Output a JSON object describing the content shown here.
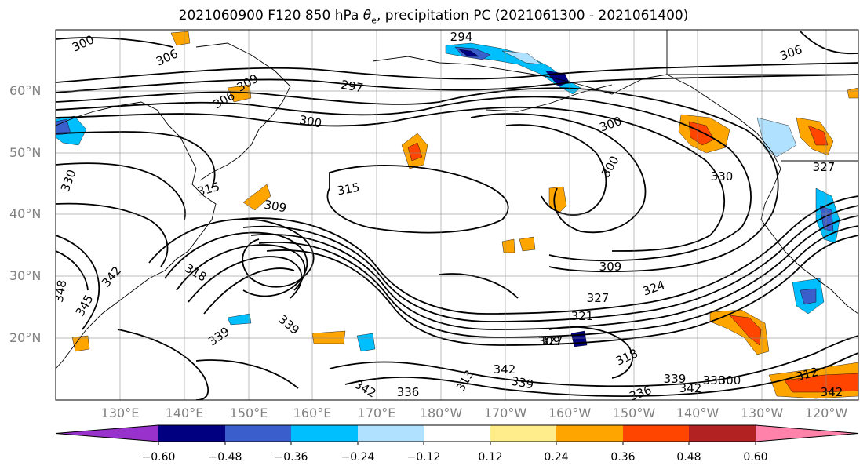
{
  "title": {
    "prefix": "2021060900 F120 850 hPa ",
    "symbol": "θ",
    "symbol_sub": "e",
    "suffix": ", precipitation PC (2021061300 - 2021061400)"
  },
  "map": {
    "projection": "PlateCarree",
    "lon_range": [
      120,
      245
    ],
    "lat_range": [
      10,
      70
    ],
    "gridlines": true,
    "lat_labels": [
      "60°N",
      "50°N",
      "40°N",
      "30°N",
      "20°N"
    ],
    "lat_values": [
      60,
      50,
      40,
      30,
      20
    ],
    "lon_labels": [
      "130°E",
      "140°E",
      "150°E",
      "160°E",
      "170°E",
      "180°W",
      "170°W",
      "160°W",
      "150°W",
      "140°W",
      "130°W",
      "120°W"
    ],
    "lon_values": [
      130,
      140,
      150,
      160,
      170,
      180,
      190,
      200,
      210,
      220,
      230,
      240
    ],
    "contour_labels": [
      "300",
      "306",
      "294",
      "306",
      "297",
      "309",
      "306",
      "300",
      "330",
      "315",
      "315",
      "309",
      "300",
      "300",
      "330",
      "327",
      "348",
      "342",
      "318",
      "345",
      "309",
      "327",
      "324",
      "321",
      "339",
      "327",
      "318",
      "339",
      "342",
      "339",
      "342",
      "336",
      "336",
      "339",
      "330",
      "342",
      "312",
      "342",
      "313",
      "300",
      "309"
    ]
  },
  "colorbar": {
    "colors": [
      "#9932cc",
      "#000080",
      "#3a5fcd",
      "#00bfff",
      "#b0e2ff",
      "#ffffff",
      "#ffec8b",
      "#ffa500",
      "#ff4500",
      "#b22222",
      "#ff82ab"
    ],
    "tick_labels": [
      "−0.60",
      "−0.48",
      "−0.36",
      "−0.24",
      "−0.12",
      "0.12",
      "0.24",
      "0.36",
      "0.48",
      "0.60"
    ],
    "extend": "both"
  }
}
